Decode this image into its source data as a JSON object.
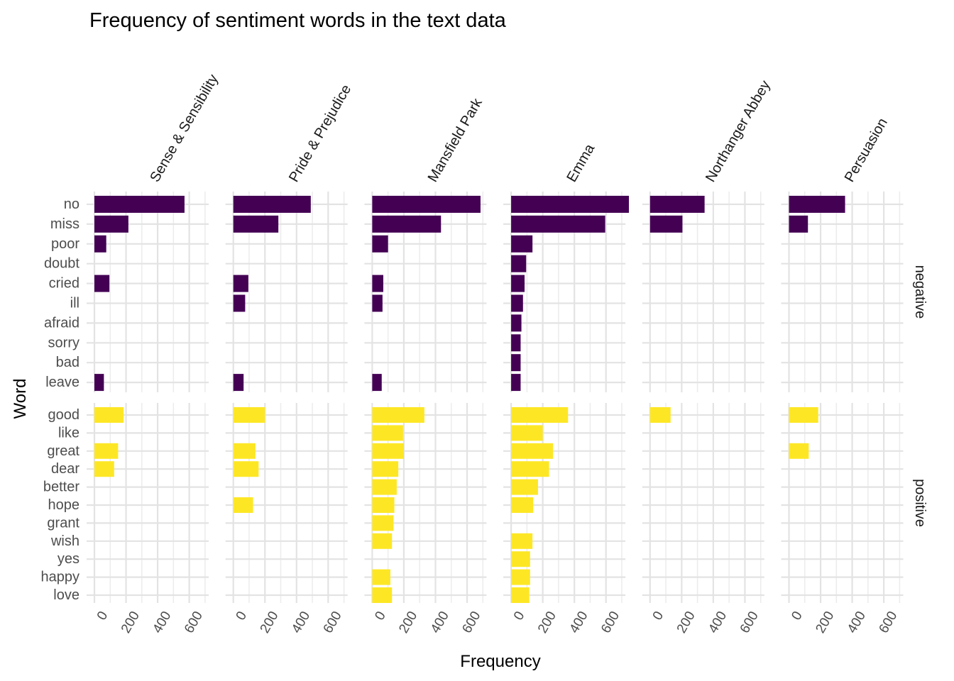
{
  "chart_data": {
    "type": "bar",
    "orientation": "horizontal",
    "title": "Frequency of sentiment words in the text data",
    "xlabel": "Frequency",
    "ylabel": "Word",
    "xlim": [
      0,
      720
    ],
    "x_ticks": [
      0,
      200,
      400,
      600
    ],
    "grid": true,
    "legend": "none",
    "facet_columns": [
      "Sense & Sensibility",
      "Pride & Prejudice",
      "Mansfield Park",
      "Emma",
      "Northanger Abbey",
      "Persuasion"
    ],
    "facet_rows": [
      {
        "label": "negative",
        "color": "#440154",
        "categories": [
          "no",
          "miss",
          "poor",
          "doubt",
          "cried",
          "ill",
          "afraid",
          "sorry",
          "bad",
          "leave"
        ],
        "values": {
          "Sense & Sensibility": [
            570,
            215,
            75,
            null,
            95,
            null,
            null,
            null,
            null,
            60
          ],
          "Pride & Prejudice": [
            490,
            285,
            null,
            null,
            95,
            75,
            null,
            null,
            null,
            65
          ],
          "Mansfield Park": [
            685,
            435,
            100,
            null,
            70,
            65,
            null,
            null,
            null,
            60
          ],
          "Emma": [
            745,
            595,
            135,
            95,
            85,
            75,
            65,
            60,
            60,
            60
          ],
          "Northanger Abbey": [
            345,
            205,
            null,
            null,
            null,
            null,
            null,
            null,
            null,
            null
          ],
          "Persuasion": [
            355,
            120,
            null,
            null,
            null,
            null,
            null,
            null,
            null,
            null
          ]
        }
      },
      {
        "label": "positive",
        "color": "#fde725",
        "categories": [
          "good",
          "like",
          "great",
          "dear",
          "better",
          "hope",
          "grant",
          "wish",
          "yes",
          "happy",
          "love"
        ],
        "values": {
          "Sense & Sensibility": [
            185,
            null,
            150,
            125,
            null,
            null,
            null,
            null,
            null,
            null,
            null
          ],
          "Pride & Prejudice": [
            200,
            null,
            140,
            160,
            null,
            125,
            null,
            null,
            null,
            null,
            null
          ],
          "Mansfield Park": [
            330,
            195,
            200,
            165,
            155,
            140,
            135,
            125,
            null,
            115,
            125
          ],
          "Emma": [
            360,
            200,
            265,
            240,
            170,
            140,
            null,
            135,
            120,
            120,
            115
          ],
          "Northanger Abbey": [
            130,
            null,
            null,
            null,
            null,
            null,
            null,
            null,
            null,
            null,
            null
          ],
          "Persuasion": [
            185,
            null,
            125,
            null,
            null,
            null,
            null,
            null,
            null,
            null,
            null
          ]
        }
      }
    ]
  }
}
